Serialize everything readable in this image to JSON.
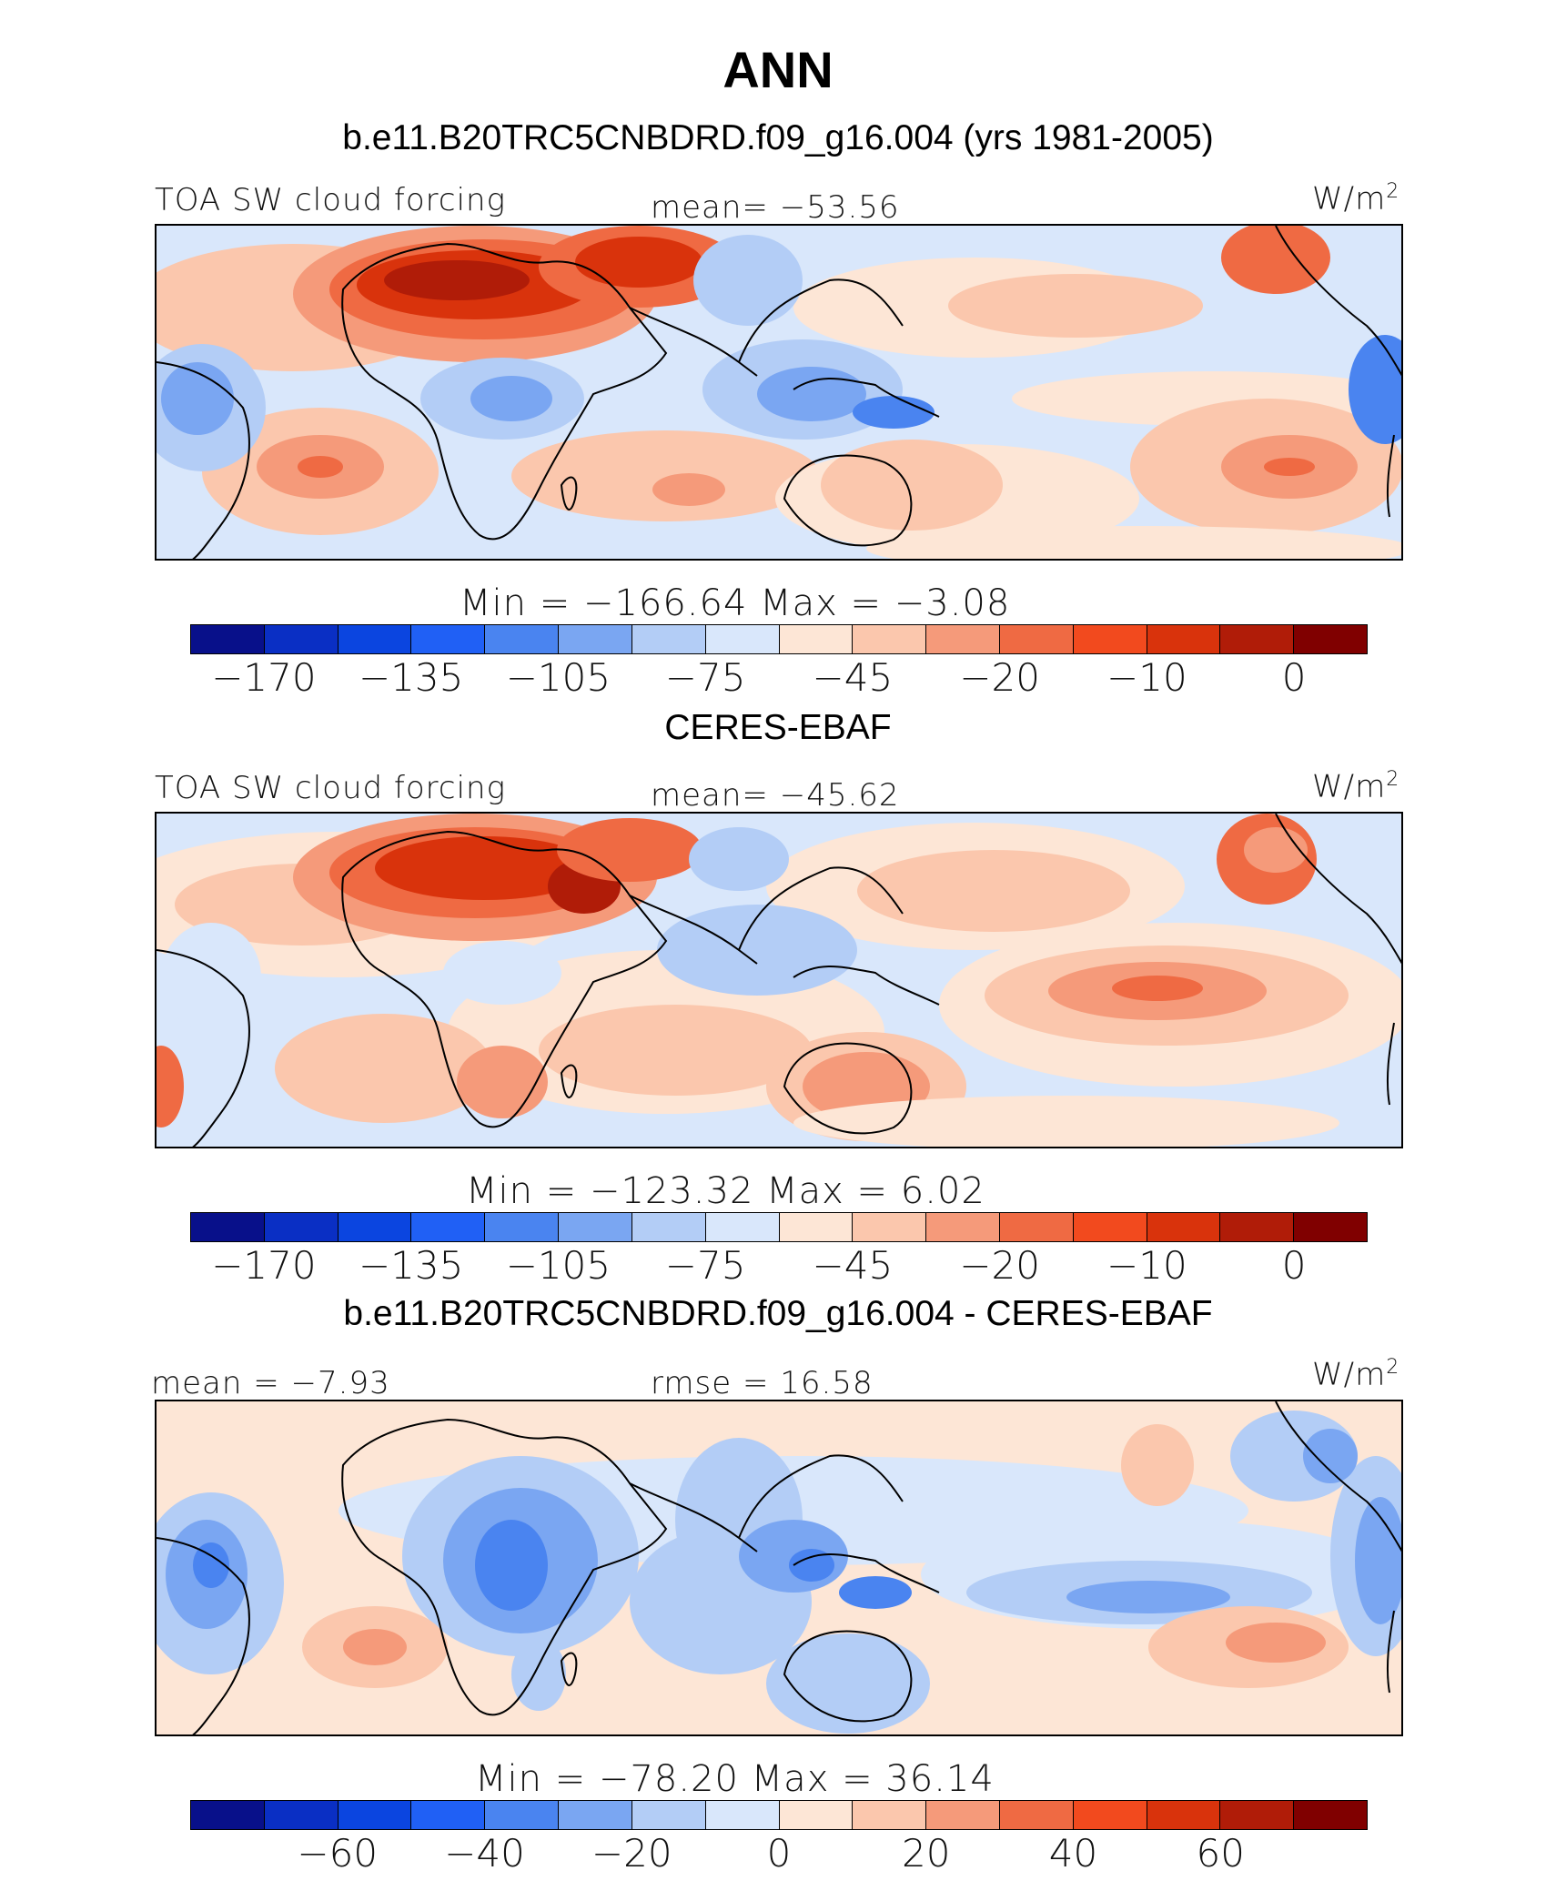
{
  "title": "ANN",
  "colors": {
    "diverging_palette": [
      "#08108a",
      "#0a2fc4",
      "#0b45e0",
      "#2060f5",
      "#4a84f0",
      "#7aa6f2",
      "#b3cdf6",
      "#d9e7fb",
      "#fde6d6",
      "#fbc7ad",
      "#f59a7a",
      "#ef6a43",
      "#f24a1e",
      "#d9330c",
      "#b01c08",
      "#800000"
    ]
  },
  "panels": [
    {
      "title": "b.e11.B20TRC5CNBDRD.f09_g16.004 (yrs 1981-2005)",
      "left_label": "TOA SW cloud forcing",
      "center_label": "mean=  −53.56",
      "units": "W/m",
      "units_sup": "2",
      "min_max": "Min  =  −166.64  Max  =    −3.08",
      "tick_labels": [
        "−170",
        "−135",
        "−105",
        "−75",
        "−45",
        "−20",
        "−10",
        "0"
      ],
      "icon": "contour-map-icon"
    },
    {
      "title": "CERES-EBAF",
      "left_label": "TOA SW cloud forcing",
      "center_label": "mean=  −45.62",
      "units": "W/m",
      "units_sup": "2",
      "min_max": "Min  =  −123.32  Max  =     6.02",
      "tick_labels": [
        "−170",
        "−135",
        "−105",
        "−75",
        "−45",
        "−20",
        "−10",
        "0"
      ],
      "icon": "contour-map-icon"
    },
    {
      "title": "b.e11.B20TRC5CNBDRD.f09_g16.004 - CERES-EBAF",
      "left_label": "mean  =   −7.93",
      "center_label": "rmse  =   16.58",
      "units": "W/m",
      "units_sup": "2",
      "min_max": "Min  =  −78.20  Max  =   36.14",
      "tick_labels": [
        "−60",
        "−40",
        "−20",
        "0",
        "20",
        "40",
        "60"
      ],
      "icon": "difference-map-icon"
    }
  ]
}
